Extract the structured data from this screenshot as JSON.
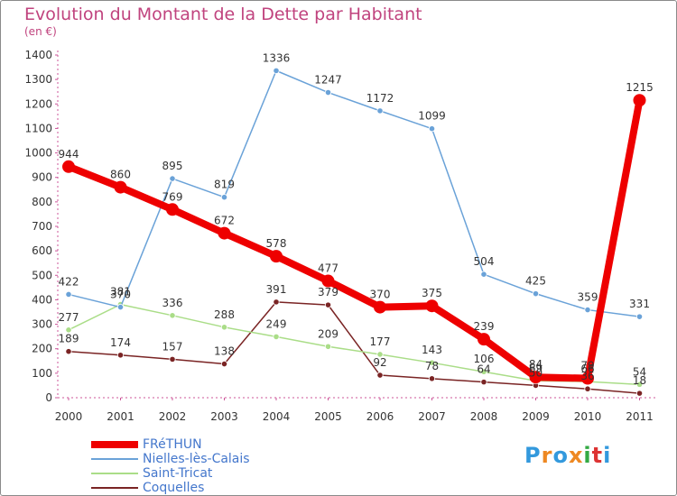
{
  "title": "Evolution du Montant de la Dette par Habitant",
  "subtitle": "(en €)",
  "logo": {
    "text": "Proxiti",
    "colors": [
      "#3399dd",
      "#ee8822",
      "#3399dd",
      "#ee8822",
      "#33aa44",
      "#dd3333",
      "#3399dd"
    ]
  },
  "chart_data": {
    "type": "line",
    "title": "Evolution du Montant de la Dette par Habitant",
    "subtitle": "(en €)",
    "xlabel": "",
    "ylabel": "",
    "categories": [
      "2000",
      "2001",
      "2002",
      "2003",
      "2004",
      "2005",
      "2006",
      "2007",
      "2008",
      "2009",
      "2010",
      "2011"
    ],
    "ylim": [
      0,
      1400
    ],
    "yticks": [
      0,
      100,
      200,
      300,
      400,
      500,
      600,
      700,
      800,
      900,
      1000,
      1100,
      1200,
      1300,
      1400
    ],
    "grid": false,
    "legend_position": "bottom-left",
    "series": [
      {
        "name": "FRéTHUN",
        "color": "#ee0000",
        "values": [
          944,
          860,
          769,
          672,
          578,
          477,
          370,
          375,
          239,
          84,
          79,
          1215
        ],
        "labels": [
          "944",
          "860",
          "769",
          "672",
          "578",
          "477",
          "370",
          "375",
          "239",
          "84",
          "79",
          "1215"
        ]
      },
      {
        "name": "Nielles-lès-Calais",
        "color": "#6aa2d8",
        "values": [
          422,
          370,
          895,
          819,
          1336,
          1247,
          1172,
          1099,
          504,
          425,
          359,
          331
        ],
        "labels": [
          "422",
          "370",
          "895",
          "819",
          "1336",
          "1247",
          "1172",
          "1099",
          "504",
          "425",
          "359",
          "331"
        ]
      },
      {
        "name": "Saint-Tricat",
        "color": "#aadd88",
        "values": [
          277,
          381,
          336,
          288,
          249,
          209,
          177,
          143,
          106,
          69,
          66,
          54
        ],
        "labels": [
          "277",
          "381",
          "336",
          "288",
          "249",
          "209",
          "177",
          "143",
          "106",
          "69",
          "66",
          "54"
        ]
      },
      {
        "name": "Coquelles",
        "color": "#7a2424",
        "values": [
          189,
          174,
          157,
          138,
          391,
          379,
          92,
          78,
          64,
          50,
          36,
          18
        ],
        "labels": [
          "189",
          "174",
          "157",
          "138",
          "391",
          "379",
          "92",
          "78",
          "64",
          "50",
          "36",
          "18"
        ]
      }
    ]
  }
}
